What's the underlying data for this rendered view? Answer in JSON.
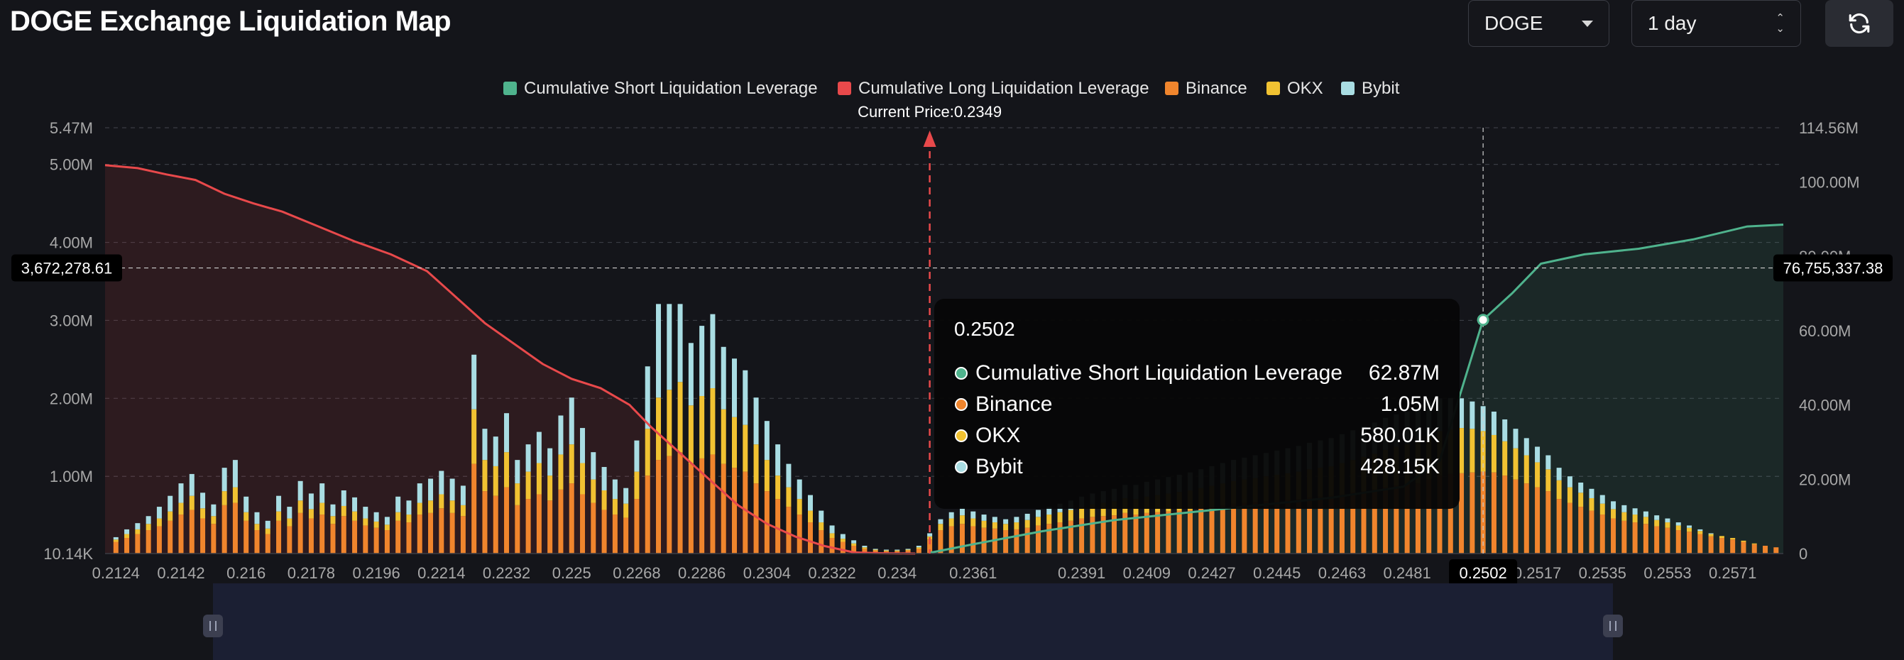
{
  "header": {
    "title": "DOGE Exchange Liquidation Map",
    "coin_select": "DOGE",
    "range_select": "1 day"
  },
  "colors": {
    "short": "#4fb38d",
    "long": "#e8494b",
    "binance": "#f0852d",
    "okx": "#f1c232",
    "bybit": "#a9dde3",
    "background": "#14151a"
  },
  "icons": {
    "refresh": "refresh-icon",
    "coin_dropdown": "chevron-down-icon",
    "range_dropdown": "up-down-icon",
    "slider_handle": "pause-grip-icon"
  },
  "chart_data": {
    "type": "bar",
    "legend": [
      "Cumulative Short Liquidation Leverage",
      "Cumulative Long Liquidation Leverage",
      "Binance",
      "OKX",
      "Bybit"
    ],
    "legend_position": "top-center",
    "current_price_label": "Current Price:0.2349",
    "current_price": 0.2349,
    "x_tick_labels": [
      "0.2124",
      "0.2142",
      "0.216",
      "0.2178",
      "0.2196",
      "0.2214",
      "0.2232",
      "0.225",
      "0.2268",
      "0.2286",
      "0.2304",
      "0.2322",
      "0.234",
      "0.2361",
      "0.2391",
      "0.2409",
      "0.2427",
      "0.2445",
      "0.2463",
      "0.2481",
      "0.2502",
      "0.2517",
      "0.2535",
      "0.2553",
      "0.2571"
    ],
    "x_range": [
      0.2121,
      0.2585
    ],
    "y_left_tick_labels": [
      "10.14K",
      "1.00M",
      "2.00M",
      "3.00M",
      "4.00M",
      "5.00M",
      "5.47M"
    ],
    "y_left_range": [
      10140,
      5470000
    ],
    "y_right_tick_labels": [
      "0",
      "20.00M",
      "40.00M",
      "60.00M",
      "80.00M",
      "100.00M",
      "114.56M"
    ],
    "y_right_range": [
      0,
      114560000
    ],
    "crosshair": {
      "y_left_label": "3,672,278.61",
      "y_right_label": "76,755,337.38",
      "x_label": "0.2502"
    },
    "tooltip": {
      "title": "0.2502",
      "rows": [
        {
          "name": "Cumulative Short Liquidation Leverage",
          "value": "62.87M",
          "color": "#4fb38d"
        },
        {
          "name": "Binance",
          "value": "1.05M",
          "color": "#f0852d"
        },
        {
          "name": "OKX",
          "value": "580.01K",
          "color": "#f1c232"
        },
        {
          "name": "Bybit",
          "value": "428.15K",
          "color": "#a9dde3"
        }
      ]
    },
    "long_cumulative": {
      "x": [
        0.2121,
        0.213,
        0.2138,
        0.2146,
        0.2154,
        0.2162,
        0.217,
        0.218,
        0.219,
        0.22,
        0.221,
        0.2218,
        0.2226,
        0.2234,
        0.2242,
        0.225,
        0.2258,
        0.2266,
        0.2272,
        0.228,
        0.2288,
        0.2296,
        0.2304,
        0.2312,
        0.232,
        0.2328,
        0.2335,
        0.2345
      ],
      "y": [
        104500000,
        103700000,
        102000000,
        100500000,
        96800000,
        94200000,
        92000000,
        88000000,
        84000000,
        80500000,
        76000000,
        69000000,
        62000000,
        56500000,
        51000000,
        47000000,
        44500000,
        40000000,
        34000000,
        27000000,
        20000000,
        13000000,
        8000000,
        4500000,
        2000000,
        300000,
        100000,
        0
      ]
    },
    "short_cumulative": {
      "x": [
        0.2349,
        0.2361,
        0.238,
        0.24,
        0.242,
        0.244,
        0.246,
        0.248,
        0.249,
        0.2502,
        0.251,
        0.2518,
        0.253,
        0.2545,
        0.256,
        0.2575,
        0.2585
      ],
      "y": [
        200000,
        2500000,
        6000000,
        9000000,
        11000000,
        13000000,
        15000000,
        18000000,
        25000000,
        62870000,
        70000000,
        78000000,
        80500000,
        82000000,
        84500000,
        88000000,
        88500000
      ]
    },
    "exchange_bars": {
      "x": [
        0.2124,
        0.2127,
        0.213,
        0.2133,
        0.2136,
        0.2139,
        0.2142,
        0.2145,
        0.2148,
        0.2151,
        0.2154,
        0.2157,
        0.216,
        0.2163,
        0.2166,
        0.2169,
        0.2172,
        0.2175,
        0.2178,
        0.2181,
        0.2184,
        0.2187,
        0.219,
        0.2193,
        0.2196,
        0.2199,
        0.2202,
        0.2205,
        0.2208,
        0.2211,
        0.2214,
        0.2217,
        0.222,
        0.2223,
        0.2226,
        0.2229,
        0.2232,
        0.2235,
        0.2238,
        0.2241,
        0.2244,
        0.2247,
        0.225,
        0.2253,
        0.2256,
        0.2259,
        0.2262,
        0.2265,
        0.2268,
        0.2271,
        0.2274,
        0.2277,
        0.228,
        0.2283,
        0.2286,
        0.2289,
        0.2292,
        0.2295,
        0.2298,
        0.2301,
        0.2304,
        0.2307,
        0.231,
        0.2313,
        0.2316,
        0.2319,
        0.2322,
        0.2325,
        0.2328,
        0.2331,
        0.2334,
        0.2337,
        0.234,
        0.2343,
        0.2346,
        0.2349,
        0.2352,
        0.2355,
        0.2358,
        0.2361,
        0.2364,
        0.2367,
        0.237,
        0.2373,
        0.2376,
        0.2379,
        0.2382,
        0.2385,
        0.2388,
        0.2391,
        0.2394,
        0.2397,
        0.24,
        0.2403,
        0.2406,
        0.2409,
        0.2412,
        0.2415,
        0.2418,
        0.2421,
        0.2424,
        0.2427,
        0.243,
        0.2433,
        0.2436,
        0.2439,
        0.2442,
        0.2445,
        0.2448,
        0.2451,
        0.2454,
        0.2457,
        0.246,
        0.2463,
        0.2466,
        0.2469,
        0.2472,
        0.2475,
        0.2478,
        0.2481,
        0.2484,
        0.2487,
        0.249,
        0.2493,
        0.2496,
        0.2499,
        0.2502,
        0.2505,
        0.2508,
        0.2511,
        0.2514,
        0.2517,
        0.252,
        0.2523,
        0.2526,
        0.2529,
        0.2532,
        0.2535,
        0.2538,
        0.2541,
        0.2544,
        0.2547,
        0.255,
        0.2553,
        0.2556,
        0.2559,
        0.2562,
        0.2565,
        0.2568,
        0.2571,
        0.2574,
        0.2577,
        0.258,
        0.2583
      ],
      "binance": [
        150000,
        200000,
        250000,
        300000,
        350000,
        420000,
        500000,
        560000,
        450000,
        380000,
        620000,
        650000,
        420000,
        300000,
        250000,
        420000,
        350000,
        520000,
        450000,
        500000,
        380000,
        480000,
        420000,
        360000,
        330000,
        300000,
        420000,
        400000,
        500000,
        520000,
        580000,
        520000,
        480000,
        1150000,
        800000,
        740000,
        850000,
        620000,
        700000,
        760000,
        680000,
        820000,
        900000,
        760000,
        650000,
        560000,
        500000,
        460000,
        700000,
        1000000,
        1200000,
        1250000,
        1300000,
        1150000,
        1220000,
        1270000,
        1150000,
        1100000,
        1050000,
        900000,
        800000,
        700000,
        600000,
        500000,
        400000,
        300000,
        200000,
        150000,
        100000,
        60000,
        40000,
        30000,
        30000,
        40000,
        60000,
        180000,
        300000,
        350000,
        380000,
        350000,
        330000,
        320000,
        300000,
        310000,
        330000,
        360000,
        380000,
        400000,
        420000,
        450000,
        470000,
        480000,
        490000,
        520000,
        500000,
        520000,
        530000,
        540000,
        550000,
        560000,
        580000,
        600000,
        620000,
        640000,
        650000,
        660000,
        670000,
        680000,
        690000,
        700000,
        720000,
        730000,
        740000,
        760000,
        780000,
        800000,
        820000,
        850000,
        870000,
        880000,
        900000,
        950000,
        1000000,
        1020000,
        1030000,
        1040000,
        1050000,
        1040000,
        1000000,
        950000,
        900000,
        850000,
        800000,
        700000,
        650000,
        600000,
        550000,
        500000,
        450000,
        420000,
        400000,
        380000,
        350000,
        330000,
        300000,
        280000,
        250000,
        220000,
        200000,
        180000,
        150000,
        120000,
        100000,
        80000
      ],
      "okx": [
        30000,
        50000,
        60000,
        80000,
        100000,
        120000,
        150000,
        180000,
        130000,
        100000,
        180000,
        200000,
        110000,
        80000,
        70000,
        120000,
        100000,
        160000,
        120000,
        150000,
        100000,
        130000,
        120000,
        90000,
        80000,
        70000,
        110000,
        100000,
        150000,
        160000,
        180000,
        160000,
        140000,
        700000,
        400000,
        380000,
        450000,
        280000,
        350000,
        400000,
        320000,
        450000,
        500000,
        400000,
        300000,
        250000,
        200000,
        180000,
        350000,
        600000,
        800000,
        850000,
        900000,
        750000,
        800000,
        850000,
        700000,
        650000,
        600000,
        500000,
        400000,
        300000,
        250000,
        200000,
        150000,
        100000,
        60000,
        40000,
        30000,
        20000,
        10000,
        10000,
        10000,
        10000,
        20000,
        40000,
        80000,
        100000,
        110000,
        100000,
        90000,
        80000,
        80000,
        90000,
        100000,
        110000,
        120000,
        130000,
        140000,
        150000,
        160000,
        170000,
        180000,
        190000,
        200000,
        210000,
        220000,
        230000,
        240000,
        250000,
        260000,
        270000,
        280000,
        290000,
        300000,
        310000,
        320000,
        330000,
        340000,
        350000,
        360000,
        370000,
        380000,
        400000,
        420000,
        440000,
        460000,
        480000,
        500000,
        520000,
        540000,
        560000,
        570000,
        575000,
        580010,
        560000,
        520000,
        480000,
        440000,
        400000,
        360000,
        320000,
        280000,
        240000,
        200000,
        180000,
        160000,
        140000,
        120000,
        110000,
        100000,
        90000,
        80000,
        70000,
        60000,
        50000,
        40000,
        30000,
        25000,
        20000,
        15000,
        10000
      ],
      "bybit": [
        30000,
        60000,
        80000,
        100000,
        150000,
        200000,
        250000,
        280000,
        200000,
        150000,
        300000,
        350000,
        200000,
        150000,
        100000,
        200000,
        150000,
        250000,
        200000,
        250000,
        150000,
        200000,
        180000,
        150000,
        120000,
        100000,
        200000,
        180000,
        250000,
        280000,
        300000,
        280000,
        250000,
        700000,
        400000,
        380000,
        500000,
        300000,
        350000,
        400000,
        350000,
        500000,
        600000,
        450000,
        350000,
        300000,
        250000,
        200000,
        400000,
        800000,
        1200000,
        1100000,
        1000000,
        800000,
        900000,
        950000,
        800000,
        750000,
        700000,
        600000,
        500000,
        400000,
        300000,
        250000,
        200000,
        150000,
        100000,
        60000,
        40000,
        20000,
        10000,
        10000,
        10000,
        10000,
        20000,
        40000,
        60000,
        80000,
        100000,
        90000,
        80000,
        70000,
        60000,
        70000,
        80000,
        90000,
        100000,
        110000,
        120000,
        130000,
        140000,
        150000,
        160000,
        170000,
        180000,
        190000,
        200000,
        210000,
        220000,
        230000,
        240000,
        250000,
        260000,
        270000,
        280000,
        290000,
        300000,
        310000,
        320000,
        330000,
        340000,
        350000,
        360000,
        370000,
        380000,
        390000,
        400000,
        410000,
        415000,
        420000,
        425000,
        428150,
        420000,
        400000,
        380000,
        350000,
        320000,
        300000,
        280000,
        250000,
        220000,
        200000,
        180000,
        160000,
        140000,
        130000,
        120000,
        110000,
        100000,
        90000,
        80000,
        70000,
        60000,
        50000,
        40000,
        30000,
        20000,
        10000
      ]
    }
  }
}
